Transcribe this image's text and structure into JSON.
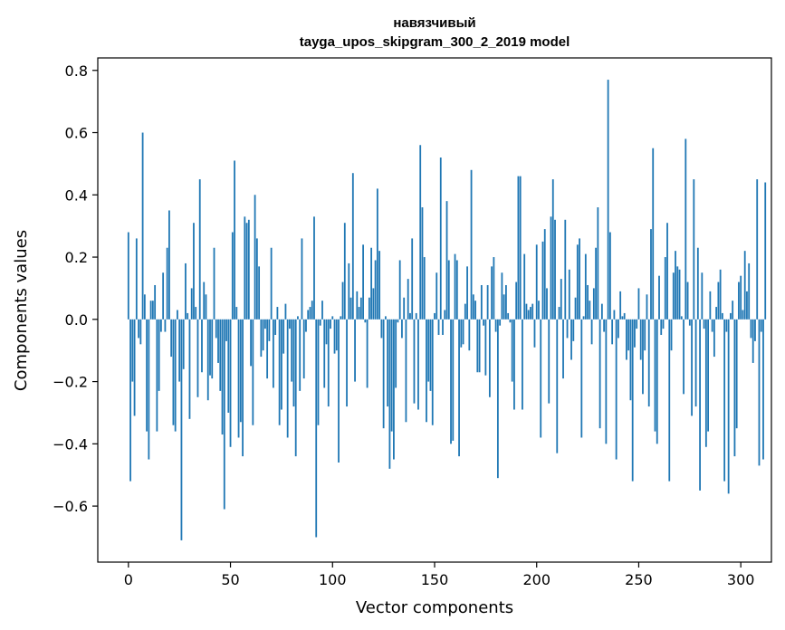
{
  "chart_data": {
    "type": "bar",
    "title": "навязчивый",
    "subtitle": "tayga_upos_skipgram_300_2_2019 model",
    "xlabel": "Vector components",
    "ylabel": "Components values",
    "xlim": [
      -15,
      315
    ],
    "ylim": [
      -0.78,
      0.84
    ],
    "xticks": [
      0,
      50,
      100,
      150,
      200,
      250,
      300
    ],
    "xtick_labels": [
      "0",
      "50",
      "100",
      "150",
      "200",
      "250",
      "300"
    ],
    "yticks": [
      -0.6,
      -0.4,
      -0.2,
      0.0,
      0.2,
      0.4,
      0.6,
      0.8
    ],
    "ytick_labels": [
      "−0.6",
      "−0.4",
      "−0.2",
      "0.0",
      "0.2",
      "0.4",
      "0.6",
      "0.8"
    ],
    "bar_color": "#1f77b4",
    "grid": false,
    "legend": "none",
    "values": [
      0.28,
      -0.52,
      -0.2,
      -0.31,
      0.26,
      -0.06,
      -0.08,
      0.6,
      0.08,
      -0.36,
      -0.45,
      0.06,
      0.06,
      0.11,
      -0.36,
      -0.23,
      -0.04,
      0.15,
      -0.04,
      0.23,
      0.35,
      -0.12,
      -0.34,
      -0.36,
      0.03,
      -0.2,
      -0.71,
      -0.16,
      0.18,
      0.02,
      -0.32,
      0.1,
      0.31,
      0.04,
      -0.25,
      0.45,
      -0.17,
      0.12,
      0.08,
      -0.26,
      -0.18,
      -0.19,
      0.23,
      -0.06,
      -0.14,
      -0.23,
      -0.37,
      -0.61,
      -0.07,
      -0.3,
      -0.41,
      0.28,
      0.51,
      0.04,
      -0.38,
      -0.33,
      -0.44,
      0.33,
      0.31,
      0.32,
      -0.15,
      -0.34,
      0.4,
      0.26,
      0.17,
      -0.12,
      -0.1,
      -0.03,
      -0.19,
      -0.07,
      0.23,
      -0.22,
      -0.05,
      0.04,
      -0.34,
      -0.29,
      -0.11,
      0.05,
      -0.38,
      -0.03,
      -0.2,
      -0.28,
      -0.44,
      0.01,
      -0.23,
      0.26,
      -0.19,
      -0.04,
      0.03,
      0.04,
      0.06,
      0.33,
      -0.7,
      -0.34,
      -0.02,
      0.06,
      -0.22,
      -0.08,
      -0.28,
      -0.03,
      0.01,
      -0.11,
      -0.1,
      -0.46,
      0.01,
      0.12,
      0.31,
      -0.28,
      0.18,
      0.07,
      0.47,
      -0.2,
      0.09,
      0.04,
      0.07,
      0.24,
      -0.01,
      -0.22,
      0.07,
      0.23,
      0.1,
      0.19,
      0.42,
      0.22,
      -0.06,
      -0.35,
      0.01,
      -0.28,
      -0.48,
      -0.36,
      -0.45,
      -0.22,
      -0.01,
      0.19,
      -0.06,
      0.07,
      -0.33,
      0.13,
      0.02,
      0.26,
      -0.27,
      0.02,
      -0.29,
      0.56,
      0.36,
      0.2,
      -0.33,
      -0.2,
      -0.23,
      -0.34,
      0.02,
      0.15,
      -0.05,
      0.52,
      -0.05,
      0.03,
      0.38,
      0.19,
      -0.4,
      -0.39,
      0.21,
      0.19,
      -0.44,
      -0.09,
      -0.08,
      0.05,
      0.17,
      -0.1,
      0.48,
      0.08,
      0.06,
      -0.17,
      -0.17,
      0.11,
      -0.02,
      -0.18,
      0.11,
      -0.25,
      0.17,
      0.2,
      -0.04,
      -0.51,
      -0.02,
      0.15,
      0.08,
      0.11,
      0.02,
      -0.01,
      -0.2,
      -0.29,
      0.12,
      0.46,
      0.46,
      -0.29,
      0.21,
      0.05,
      0.03,
      0.04,
      0.05,
      -0.09,
      0.24,
      0.06,
      -0.38,
      0.25,
      0.29,
      0.1,
      -0.27,
      0.33,
      0.45,
      0.32,
      -0.43,
      0.04,
      0.13,
      -0.19,
      0.32,
      -0.06,
      0.16,
      -0.13,
      -0.07,
      0.07,
      0.24,
      0.26,
      -0.38,
      0.01,
      0.21,
      0.11,
      0.06,
      -0.08,
      0.1,
      0.23,
      0.36,
      -0.35,
      0.05,
      -0.04,
      -0.4,
      0.77,
      0.28,
      -0.08,
      0.03,
      -0.45,
      -0.06,
      0.09,
      0.01,
      0.02,
      -0.13,
      -0.1,
      -0.26,
      -0.52,
      -0.09,
      -0.03,
      0.1,
      -0.13,
      -0.24,
      -0.1,
      0.08,
      -0.28,
      0.29,
      0.55,
      -0.36,
      -0.4,
      0.14,
      -0.05,
      -0.03,
      0.2,
      0.31,
      -0.52,
      -0.1,
      0.15,
      0.22,
      0.17,
      0.16,
      0.01,
      -0.24,
      0.58,
      0.12,
      -0.02,
      -0.31,
      0.45,
      -0.28,
      0.23,
      -0.55,
      0.15,
      -0.03,
      -0.41,
      -0.36,
      0.09,
      -0.04,
      -0.12,
      0.04,
      0.12,
      0.16,
      0.02,
      -0.52,
      -0.04,
      -0.56,
      0.02,
      0.06,
      -0.44,
      -0.35,
      0.12,
      0.14,
      0.03,
      0.22,
      0.09,
      0.18,
      -0.06,
      -0.14,
      -0.07,
      0.45,
      -0.47,
      -0.04,
      -0.45,
      0.44
    ]
  }
}
